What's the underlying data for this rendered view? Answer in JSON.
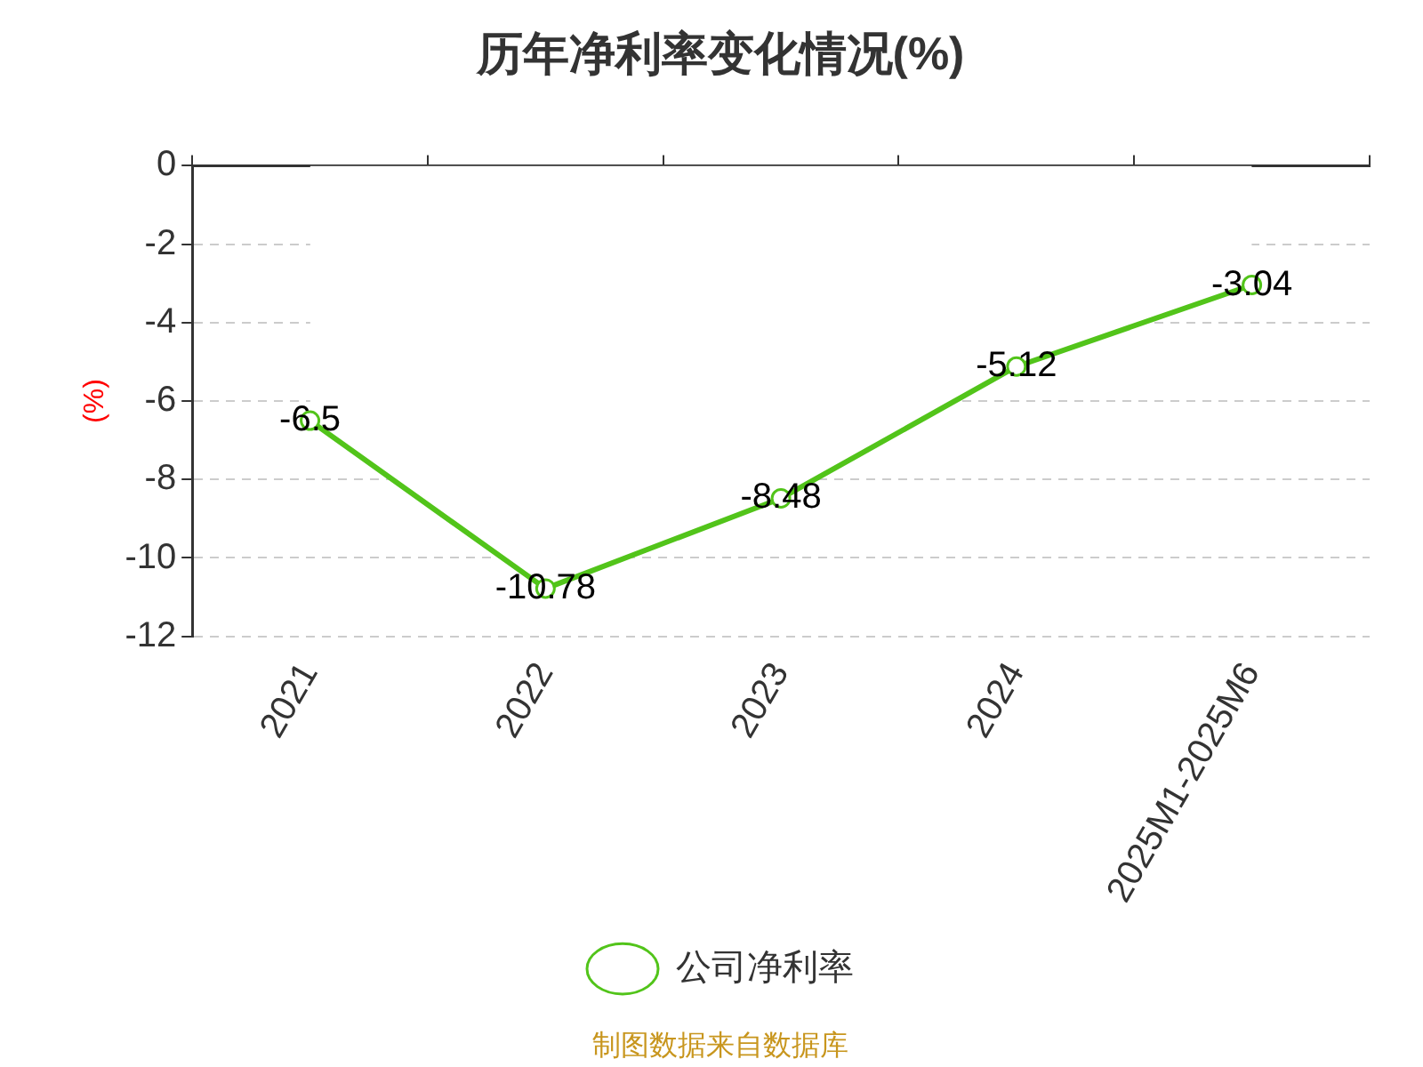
{
  "chart_data": {
    "type": "line",
    "title": "历年净利率变化情况(%)",
    "ylabel": "(%)",
    "categories": [
      "2021",
      "2022",
      "2023",
      "2024",
      "2025M1-2025M6"
    ],
    "series": [
      {
        "name": "公司净利率",
        "color": "#52c41a",
        "values": [
          -6.5,
          -10.78,
          -8.48,
          -5.12,
          -3.04
        ]
      }
    ],
    "ylim": [
      -12,
      0
    ],
    "yticks": [
      -12,
      -10,
      -8,
      -6,
      -4,
      -2,
      0
    ],
    "grid": "y",
    "legend": "bottom",
    "marker": "circle",
    "line_style": "solid",
    "data_labels": true,
    "annotations": [
      "制图数据来自数据库"
    ]
  }
}
